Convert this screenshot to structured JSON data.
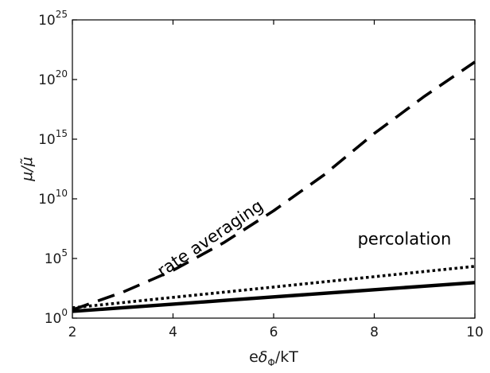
{
  "chart_data": {
    "type": "line",
    "x_scale": "linear",
    "y_scale": "log",
    "xlim": [
      2,
      10
    ],
    "ylim": [
      1,
      1e+25
    ],
    "x_ticks": [
      2,
      4,
      6,
      8,
      10
    ],
    "y_ticks": [
      1,
      100000.0,
      10000000000.0,
      1000000000000000.0,
      1e+20,
      1e+25
    ],
    "x_tick_labels": [
      "2",
      "4",
      "6",
      "8",
      "10"
    ],
    "y_tick_labels": [
      {
        "base": "10",
        "exp": "0"
      },
      {
        "base": "10",
        "exp": "5"
      },
      {
        "base": "10",
        "exp": "10"
      },
      {
        "base": "10",
        "exp": "15"
      },
      {
        "base": "10",
        "exp": "20"
      },
      {
        "base": "10",
        "exp": "25"
      }
    ],
    "xlabel": {
      "pre": "e",
      "symbol": "δ",
      "sub": "Φ",
      "post": "/kT"
    },
    "ylabel": "μ/μ̃",
    "grid": false,
    "series": [
      {
        "name": "rate averaging",
        "style": "dashed",
        "x": [
          2,
          3,
          4,
          5,
          6,
          7,
          8,
          9,
          10
        ],
        "y": [
          5,
          150,
          10000.0,
          2000000.0,
          1000000000.0,
          1000000000000.0,
          3000000000000000.0,
          4e+18,
          3e+21
        ]
      },
      {
        "name": "percolation",
        "style": "dotted",
        "x": [
          2,
          3,
          4,
          5,
          6,
          7,
          8,
          9,
          10
        ],
        "y": [
          7.4,
          20,
          55,
          148,
          403,
          1100,
          2980,
          8100,
          22000
        ]
      },
      {
        "style": "solid",
        "x": [
          2,
          3,
          4,
          5,
          6,
          7,
          8,
          9,
          10
        ],
        "y": [
          3.7,
          7.4,
          14.8,
          30,
          60,
          120,
          240,
          480,
          960
        ]
      }
    ],
    "annotations": [
      {
        "text": "rate averaging",
        "x": 4.8,
        "y": 2000000.0,
        "rotation": -34
      },
      {
        "text": "percolation",
        "x": 8.6,
        "y": 1500000.0,
        "rotation": 0
      }
    ]
  }
}
